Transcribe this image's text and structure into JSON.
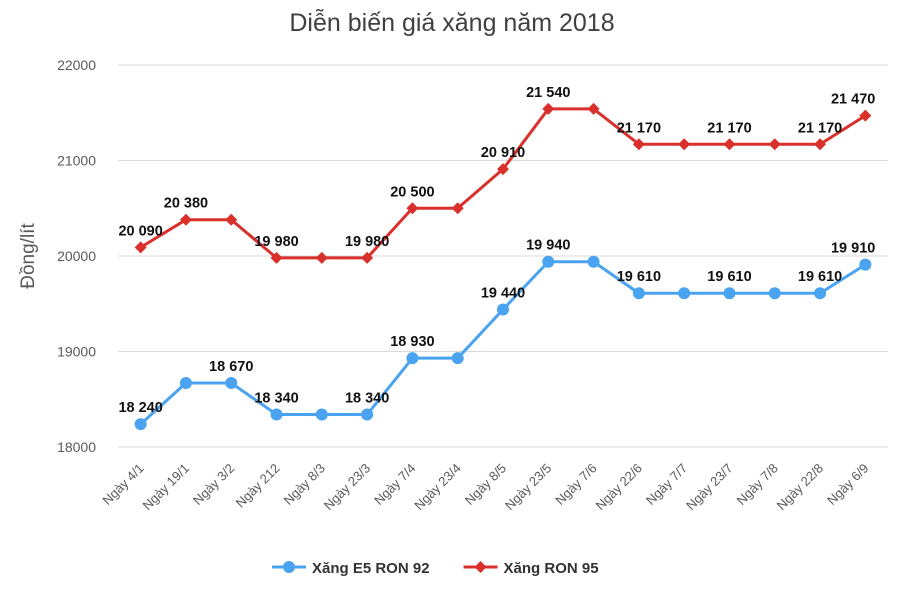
{
  "chart_data": {
    "type": "line",
    "title": "Diễn biến giá xăng năm 2018",
    "xlabel": "",
    "ylabel": "Đồng/lít",
    "ylim": [
      18000,
      22000
    ],
    "yticks": [
      "18000",
      "19000",
      "20000",
      "21000",
      "22000"
    ],
    "grid": true,
    "legend_position": "bottom",
    "categories": [
      "Ngày 4/1",
      "Ngày 19/1",
      "Ngày 3/2",
      "Ngày 212",
      "Ngày 8/3",
      "Ngày 23/3",
      "Ngày 7/4",
      "Ngày 23/4",
      "Ngày 8/5",
      "Ngày 23/5",
      "Ngày 7/6",
      "Ngày 22/6",
      "Ngày 7/7",
      "Ngày 23/7",
      "Ngày 7/8",
      "Ngày 22/8",
      "Ngày 6/9"
    ],
    "series": [
      {
        "name": "Xăng E5 RON 92",
        "color": "#4aa3f0",
        "marker": "circle",
        "values": [
          18240,
          18670,
          18670,
          18340,
          18340,
          18340,
          18930,
          18930,
          19440,
          19940,
          19940,
          19610,
          19610,
          19610,
          19610,
          19610,
          19910
        ],
        "labels": [
          "18 240",
          "",
          "18 670",
          "18 340",
          "",
          "18 340",
          "18 930",
          "",
          "19 440",
          "19 940",
          "",
          "19 610",
          "",
          "19 610",
          "",
          "19 610",
          "19 910"
        ]
      },
      {
        "name": "Xăng RON 95",
        "color": "#d9302b",
        "marker": "diamond",
        "values": [
          20090,
          20380,
          20380,
          19980,
          19980,
          19980,
          20500,
          20500,
          20910,
          21540,
          21540,
          21170,
          21170,
          21170,
          21170,
          21170,
          21470
        ],
        "labels": [
          "20 090",
          "20 380",
          "",
          "19 980",
          "",
          "19 980",
          "20 500",
          "",
          "20 910",
          "21 540",
          "",
          "21 170",
          "",
          "21 170",
          "",
          "21 170",
          "21 470"
        ]
      }
    ]
  }
}
